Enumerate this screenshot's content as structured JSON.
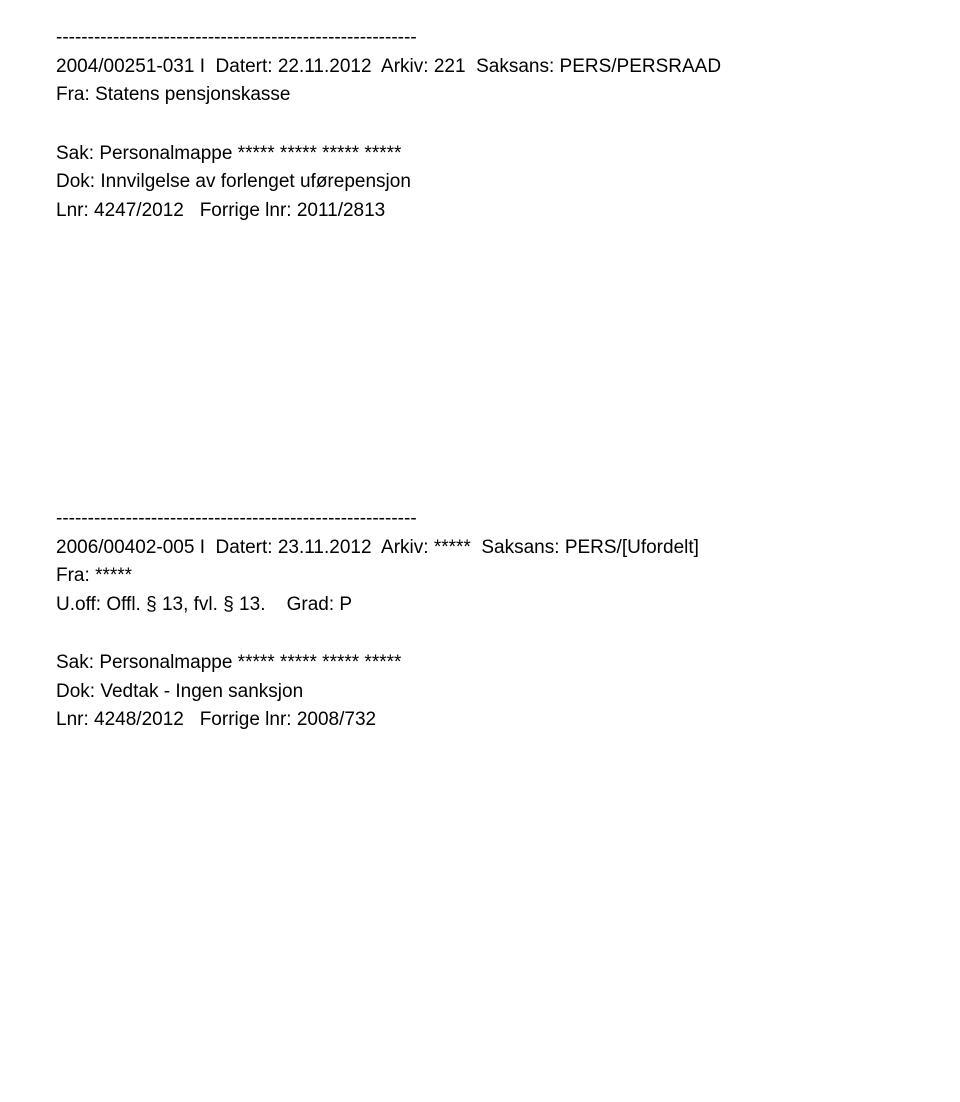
{
  "separator": "---------------------------------------------------------",
  "records": [
    {
      "case_no": "2004/00251-031 I",
      "dated_label": "Datert:",
      "dated": "22.11.2012",
      "arkiv_label": "Arkiv:",
      "arkiv": "221",
      "saksans_label": "Saksans:",
      "saksans": "PERS/PERSRAAD",
      "fra_label": "Fra:",
      "fra": "Statens pensjonskasse",
      "sak_label": "Sak:",
      "sak": "Personalmappe ***** ***** ***** *****",
      "dok_label": "Dok:",
      "dok": "Innvilgelse av forlenget uførepensjon",
      "lnr_label": "Lnr:",
      "lnr": "4247/2012",
      "forrige_label": "Forrige lnr:",
      "forrige": "2011/2813"
    },
    {
      "case_no": "2006/00402-005 I",
      "dated_label": "Datert:",
      "dated": "23.11.2012",
      "arkiv_label": "Arkiv:",
      "arkiv": "*****",
      "saksans_label": "Saksans:",
      "saksans": "PERS/[Ufordelt]",
      "fra_label": "Fra:",
      "fra": "*****",
      "uoff_label": "U.off:",
      "uoff": "Offl. § 13, fvl. § 13.",
      "grad_label": "Grad:",
      "grad": "P",
      "sak_label": "Sak:",
      "sak": "Personalmappe ***** ***** ***** *****",
      "dok_label": "Dok:",
      "dok": "Vedtak - Ingen sanksjon",
      "lnr_label": "Lnr:",
      "lnr": "4248/2012",
      "forrige_label": "Forrige lnr:",
      "forrige": "2008/732"
    }
  ]
}
